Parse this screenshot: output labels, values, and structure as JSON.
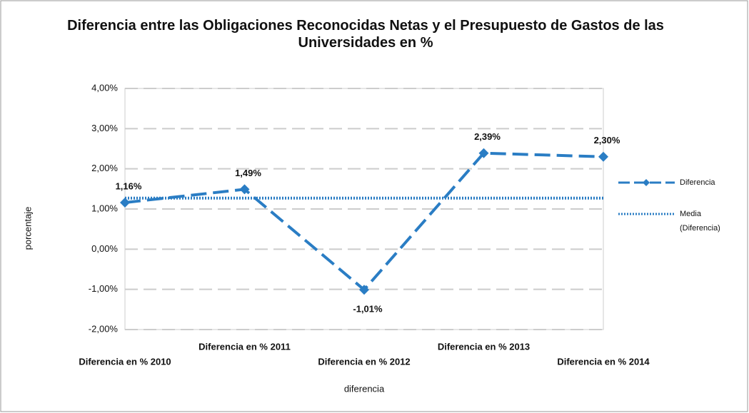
{
  "chart_data": {
    "type": "line",
    "title": "Diferencia entre las Obligaciones Reconocidas Netas y el Presupuesto de Gastos de las Universidades en %",
    "x_label": "diferencia",
    "y_label": "porcentaje",
    "categories": [
      "Diferencia en % 2010",
      "Diferencia en % 2011",
      "Diferencia en % 2012",
      "Diferencia en % 2013",
      "Diferencia en % 2014"
    ],
    "series": [
      {
        "name": "Diferencia",
        "color": "#2a7dc4",
        "style": "dashed",
        "marker": "diamond",
        "values": [
          1.16,
          1.49,
          -1.01,
          2.39,
          2.3
        ],
        "value_labels": [
          "1,16%",
          "1,49%",
          "-1,01%",
          "2,39%",
          "2,30%"
        ]
      },
      {
        "name": "Media (Diferencia)",
        "color": "#2a7dc4",
        "style": "dotted",
        "values": [
          1.27,
          1.27,
          1.27,
          1.27,
          1.27
        ]
      }
    ],
    "negative_label_color": "#e8323c",
    "ylim": [
      -2,
      4
    ],
    "yticks": [
      {
        "value": -2,
        "label": "-2,00%"
      },
      {
        "value": -1,
        "label": "-1,00%"
      },
      {
        "value": 0,
        "label": "0,00%"
      },
      {
        "value": 1,
        "label": "1,00%"
      },
      {
        "value": 2,
        "label": "2,00%"
      },
      {
        "value": 3,
        "label": "3,00%"
      },
      {
        "value": 4,
        "label": "4,00%"
      }
    ],
    "grid": true,
    "legend": "right"
  }
}
